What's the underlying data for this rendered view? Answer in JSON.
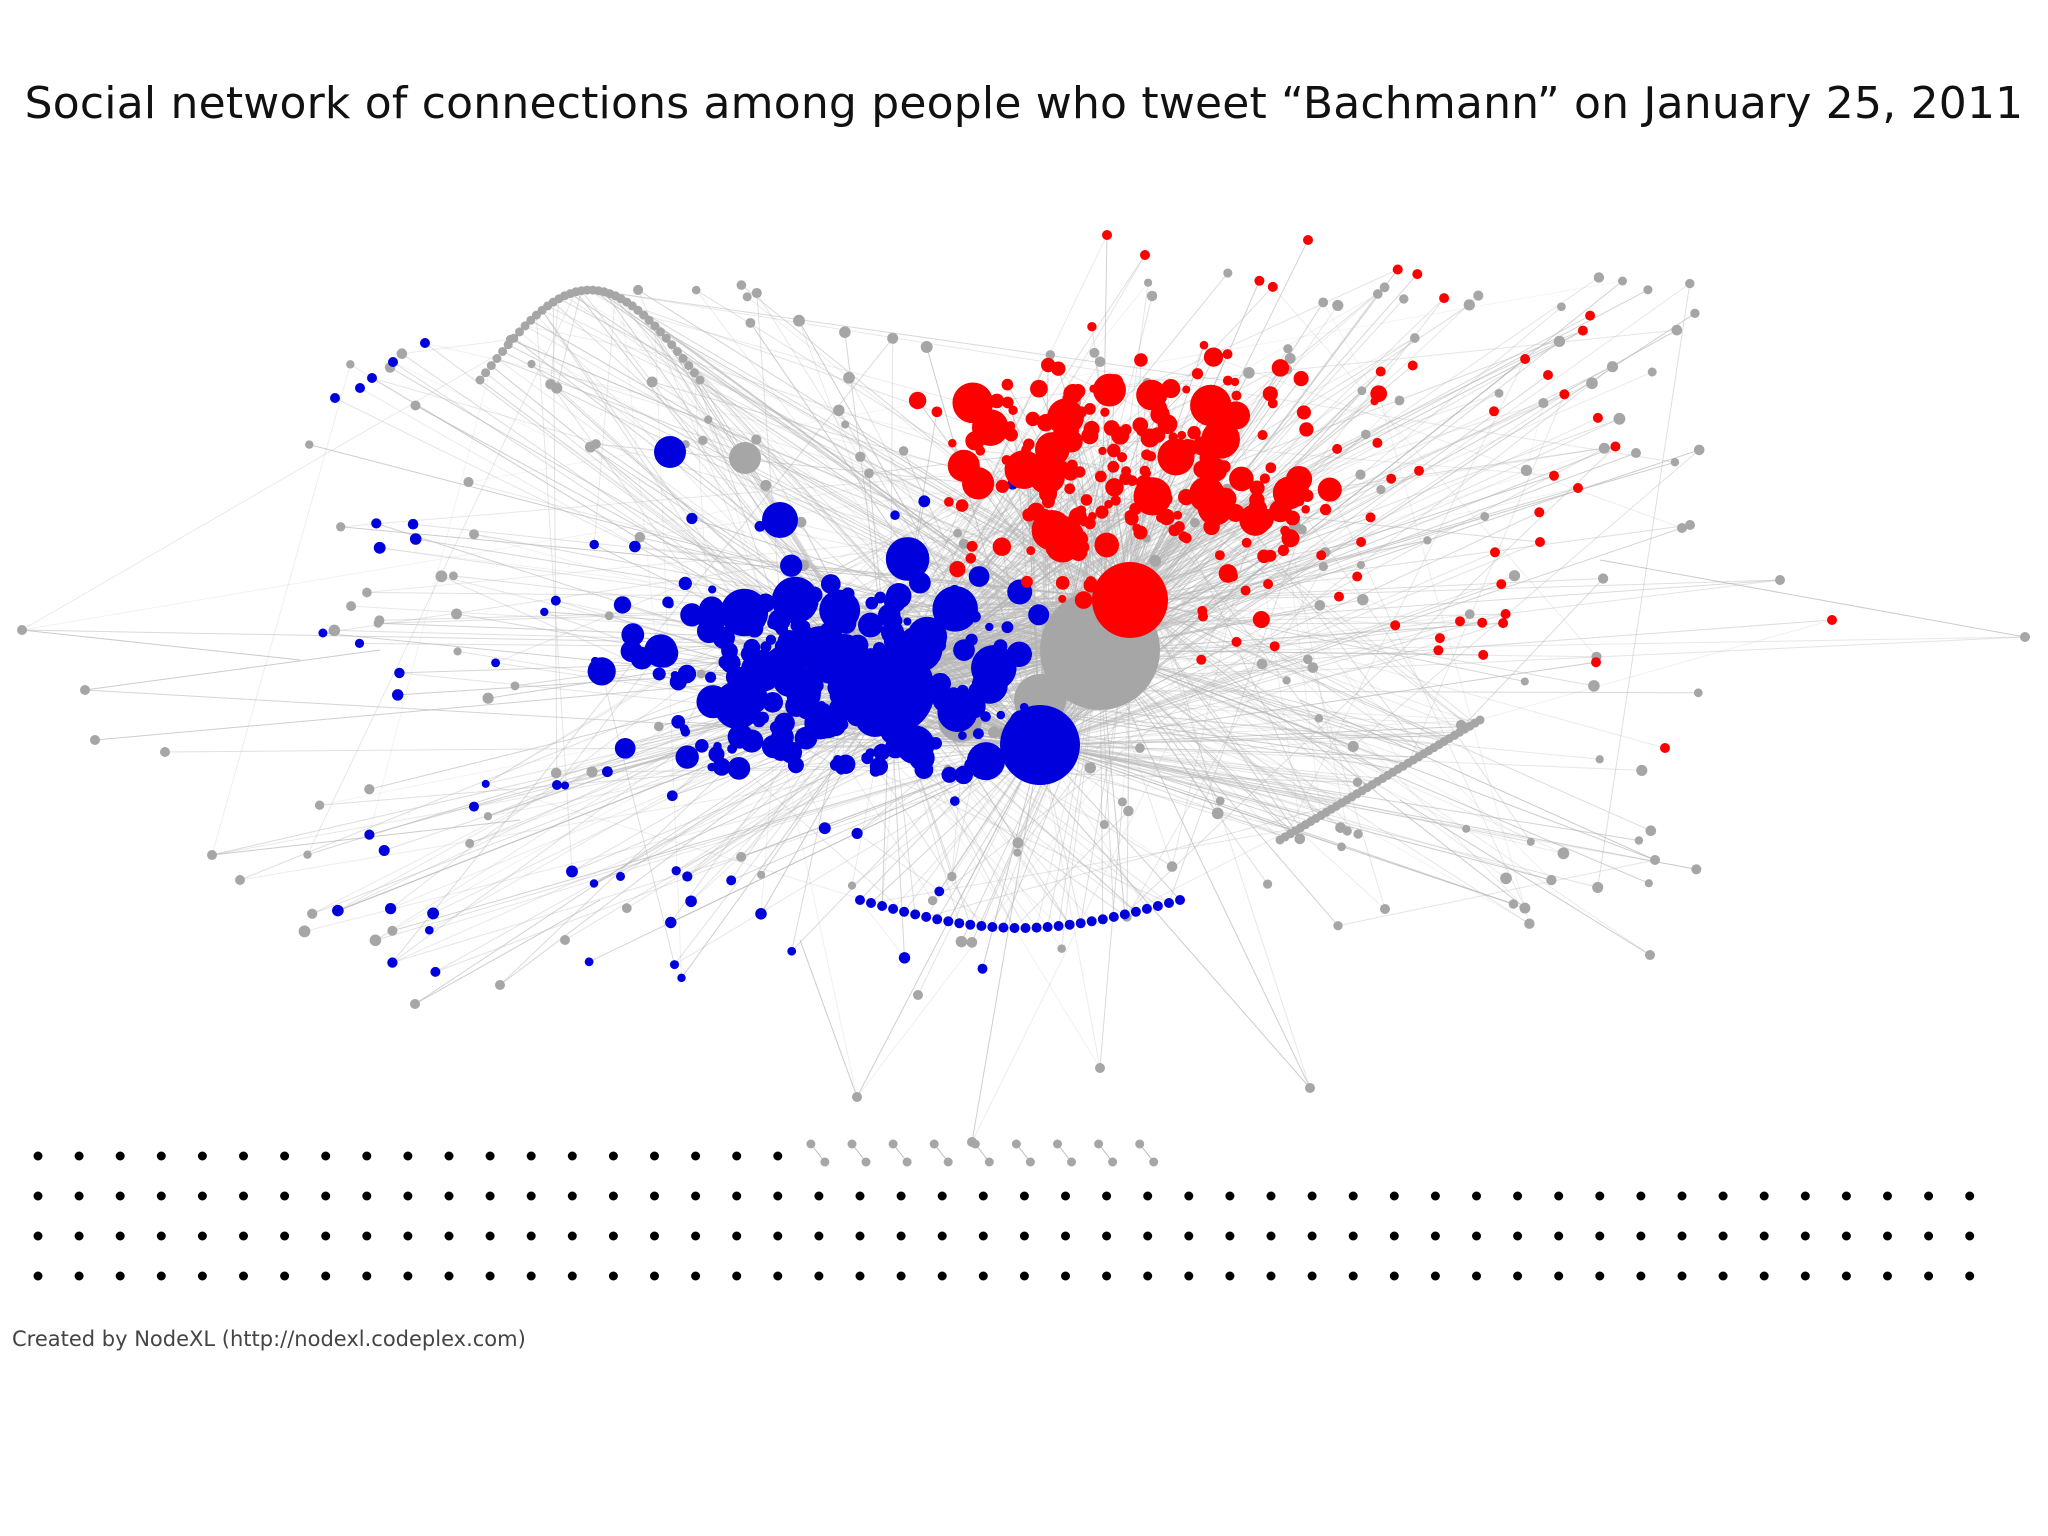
{
  "slide": {
    "title": "Social network of connections among people who tweet “Bachmann” on January 25, 2011",
    "credit": "Created by NodeXL (http://nodexl.codeplex.com)"
  },
  "graph": {
    "colors": {
      "blue_cluster": "#0000dd",
      "red_cluster": "#ff0000",
      "unclustered": "#a6a6a6",
      "isolates": "#000000",
      "edges": "#b5b5b5"
    },
    "isolate_grid": {
      "rows": 4,
      "columns": 48,
      "top_row_black_count": 19
    }
  }
}
